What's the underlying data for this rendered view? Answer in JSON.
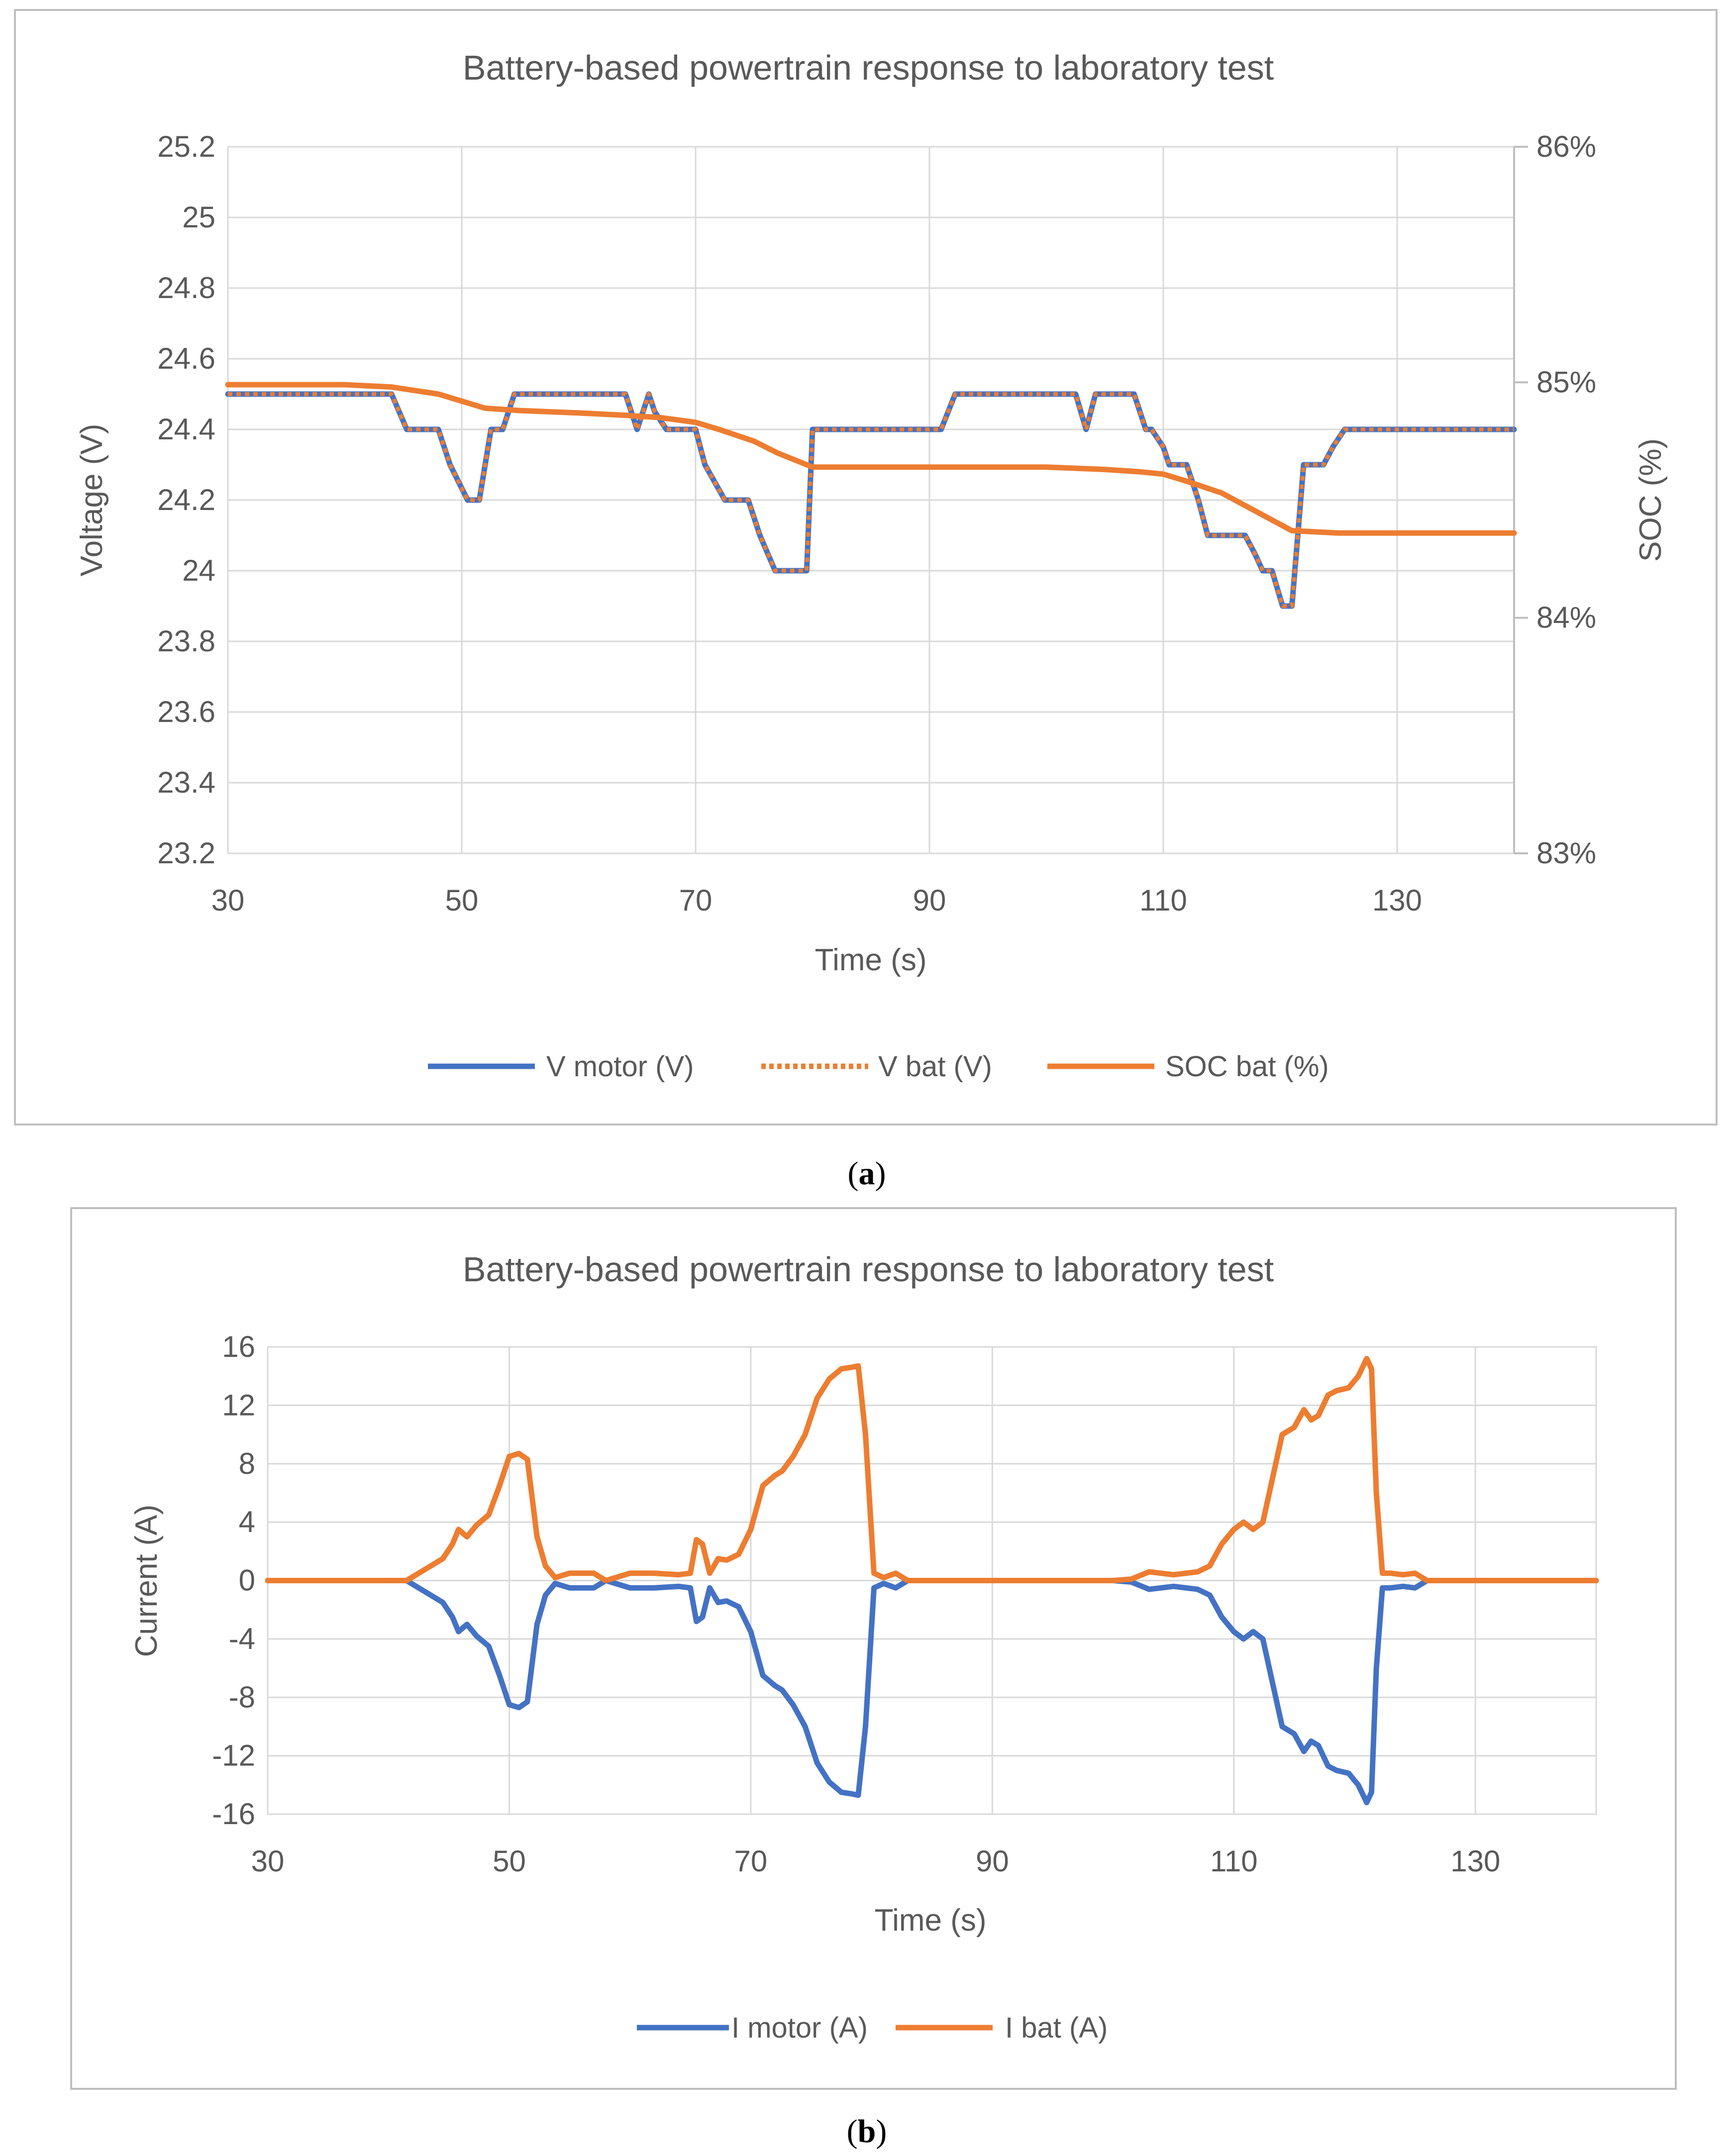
{
  "colors": {
    "blue": "#4472C4",
    "orange": "#ED7D31",
    "grid": "#D9D9D9",
    "frame": "#BFBFBF",
    "text": "#595959"
  },
  "chart_data": [
    {
      "type": "line",
      "caption_letter": "a",
      "title": "Battery-based powertrain response to laboratory test",
      "xlabel": "Time (s)",
      "ylabel": "Voltage (V)",
      "y2label": "SOC (%)",
      "xlim": [
        30,
        140
      ],
      "ylim": [
        23.2,
        25.2
      ],
      "y2lim": [
        83,
        86
      ],
      "xticks": [
        "30",
        "50",
        "70",
        "90",
        "110",
        "130"
      ],
      "xtick_values": [
        30,
        50,
        70,
        90,
        110,
        130
      ],
      "yticks": [
        "23.2",
        "23.4",
        "23.6",
        "23.8",
        "24",
        "24.2",
        "24.4",
        "24.6",
        "24.8",
        "25",
        "25.2"
      ],
      "ytick_values": [
        23.2,
        23.4,
        23.6,
        23.8,
        24.0,
        24.2,
        24.4,
        24.6,
        24.8,
        25.0,
        25.2
      ],
      "y2ticks": [
        "83%",
        "84%",
        "85%",
        "86%"
      ],
      "y2tick_values": [
        83,
        84,
        85,
        86
      ],
      "series": [
        {
          "name": "V motor (V)",
          "axis": "left",
          "color": "blue",
          "style": "solid",
          "x": [
            30,
            44,
            45.3,
            48,
            49,
            50.5,
            51.5,
            52.5,
            53.5,
            54.5,
            64,
            65,
            65.5,
            66,
            66.5,
            67.5,
            70,
            70.8,
            72.5,
            74.5,
            75.5,
            76.8,
            78.5,
            79.5,
            80,
            91,
            92.2,
            102.5,
            103.4,
            104.2,
            105,
            107.5,
            108.5,
            109,
            110,
            110.5,
            111,
            112,
            113,
            113.8,
            117,
            117.8,
            118.5,
            119.3,
            120.2,
            121,
            121.5,
            122,
            123,
            123.7,
            124.5,
            125.5,
            126,
            140
          ],
          "y": [
            24.5,
            24.5,
            24.4,
            24.4,
            24.3,
            24.2,
            24.2,
            24.4,
            24.4,
            24.5,
            24.5,
            24.4,
            24.45,
            24.5,
            24.45,
            24.4,
            24.4,
            24.3,
            24.2,
            24.2,
            24.1,
            24.0,
            24.0,
            24.0,
            24.4,
            24.4,
            24.5,
            24.5,
            24.4,
            24.5,
            24.5,
            24.5,
            24.4,
            24.4,
            24.35,
            24.3,
            24.3,
            24.3,
            24.2,
            24.1,
            24.1,
            24.05,
            24.0,
            24.0,
            23.9,
            23.9,
            24.1,
            24.3,
            24.3,
            24.3,
            24.35,
            24.4,
            24.4,
            24.4
          ]
        },
        {
          "name": "V bat (V)",
          "axis": "left",
          "color": "orange",
          "style": "dotted",
          "same_as": "V motor (V)"
        },
        {
          "name": "SOC bat (%)",
          "axis": "right",
          "color": "orange",
          "style": "solid",
          "x": [
            30,
            40,
            44,
            48,
            50,
            52,
            55,
            60,
            64,
            67,
            70,
            72,
            75,
            77,
            80,
            85,
            90,
            95,
            100,
            105,
            108,
            110,
            112,
            115,
            118,
            121,
            125,
            130,
            140
          ],
          "y": [
            84.99,
            84.99,
            84.98,
            84.95,
            84.92,
            84.89,
            84.88,
            84.87,
            84.86,
            84.85,
            84.83,
            84.8,
            84.75,
            84.7,
            84.64,
            84.64,
            84.64,
            84.64,
            84.64,
            84.63,
            84.62,
            84.61,
            84.58,
            84.53,
            84.45,
            84.37,
            84.36,
            84.36,
            84.36
          ]
        }
      ]
    },
    {
      "type": "line",
      "caption_letter": "b",
      "title": "Battery-based powertrain response to laboratory test",
      "xlabel": "Time (s)",
      "ylabel": "Current (A)",
      "xlim": [
        30,
        140
      ],
      "ylim": [
        -16,
        16
      ],
      "xticks": [
        "30",
        "50",
        "70",
        "90",
        "110",
        "130"
      ],
      "xtick_values": [
        30,
        50,
        70,
        90,
        110,
        130
      ],
      "yticks": [
        "-16",
        "-12",
        "-8",
        "-4",
        "0",
        "4",
        "8",
        "12",
        "16"
      ],
      "ytick_values": [
        -16,
        -12,
        -8,
        -4,
        0,
        4,
        8,
        12,
        16
      ],
      "series": [
        {
          "name": "I motor (A)",
          "color": "blue",
          "style": "solid",
          "x": [
            30,
            41.5,
            42.5,
            43.5,
            44.5,
            45.3,
            45.8,
            46.5,
            47.3,
            48.3,
            49.2,
            50,
            50.8,
            51.5,
            52.3,
            53,
            53.8,
            55,
            57,
            58,
            60,
            62,
            64,
            65,
            65.5,
            66,
            66.6,
            67.3,
            68,
            69,
            70,
            71,
            72,
            72.6,
            73.5,
            74.5,
            75.5,
            76.5,
            77.5,
            78.3,
            78.9,
            79.5,
            80.2,
            81,
            82,
            83,
            84,
            85,
            100,
            101.5,
            103,
            105,
            107,
            108,
            109,
            110,
            110.8,
            111.6,
            112.4,
            113.2,
            114,
            115,
            115.8,
            116.4,
            117,
            117.8,
            118.5,
            119.5,
            120.3,
            121,
            121.4,
            121.8,
            122.3,
            123,
            124,
            125,
            126,
            127,
            128,
            140
          ],
          "y": [
            0,
            0,
            -0.5,
            -1.0,
            -1.5,
            -2.5,
            -3.5,
            -3.0,
            -3.8,
            -4.5,
            -6.5,
            -8.5,
            -8.7,
            -8.3,
            -3,
            -1,
            -0.2,
            -0.5,
            -0.5,
            0,
            -0.5,
            -0.5,
            -0.4,
            -0.5,
            -2.8,
            -2.5,
            -0.5,
            -1.5,
            -1.4,
            -1.8,
            -3.5,
            -6.5,
            -7.2,
            -7.5,
            -8.5,
            -10,
            -12.5,
            -13.8,
            -14.5,
            -14.6,
            -14.7,
            -10,
            -0.5,
            -0.2,
            -0.5,
            0,
            0,
            0,
            0,
            -0.1,
            -0.6,
            -0.4,
            -0.6,
            -1.0,
            -2.5,
            -3.5,
            -4.0,
            -3.5,
            -4.0,
            -7.0,
            -10.0,
            -10.5,
            -11.7,
            -11.0,
            -11.3,
            -12.7,
            -13.0,
            -13.2,
            -14.0,
            -15.2,
            -14.5,
            -6.0,
            -0.5,
            -0.5,
            -0.4,
            -0.5,
            0,
            0,
            0,
            0
          ]
        },
        {
          "name": "I bat (A)",
          "color": "orange",
          "style": "solid",
          "x": [
            30,
            41.5,
            42.5,
            43.5,
            44.5,
            45.3,
            45.8,
            46.5,
            47.3,
            48.3,
            49.2,
            50,
            50.8,
            51.5,
            52.3,
            53,
            53.8,
            55,
            57,
            58,
            60,
            62,
            64,
            65,
            65.5,
            66,
            66.6,
            67.3,
            68,
            69,
            70,
            71,
            72,
            72.6,
            73.5,
            74.5,
            75.5,
            76.5,
            77.5,
            78.3,
            78.9,
            79.5,
            80.2,
            81,
            82,
            83,
            84,
            85,
            100,
            101.5,
            103,
            105,
            107,
            108,
            109,
            110,
            110.8,
            111.6,
            112.4,
            113.2,
            114,
            115,
            115.8,
            116.4,
            117,
            117.8,
            118.5,
            119.5,
            120.3,
            121,
            121.4,
            121.8,
            122.3,
            123,
            124,
            125,
            126,
            127,
            128,
            140
          ],
          "y": [
            0,
            0,
            0.5,
            1.0,
            1.5,
            2.5,
            3.5,
            3.0,
            3.8,
            4.5,
            6.5,
            8.5,
            8.7,
            8.3,
            3,
            1,
            0.2,
            0.5,
            0.5,
            0,
            0.5,
            0.5,
            0.4,
            0.5,
            2.8,
            2.5,
            0.5,
            1.5,
            1.4,
            1.8,
            3.5,
            6.5,
            7.2,
            7.5,
            8.5,
            10,
            12.5,
            13.8,
            14.5,
            14.6,
            14.7,
            10,
            0.5,
            0.2,
            0.5,
            0,
            0,
            0,
            0,
            0.1,
            0.6,
            0.4,
            0.6,
            1.0,
            2.5,
            3.5,
            4.0,
            3.5,
            4.0,
            7.0,
            10.0,
            10.5,
            11.7,
            11.0,
            11.3,
            12.7,
            13.0,
            13.2,
            14.0,
            15.2,
            14.5,
            6.0,
            0.5,
            0.5,
            0.4,
            0.5,
            0,
            0,
            0,
            0
          ]
        }
      ]
    }
  ]
}
